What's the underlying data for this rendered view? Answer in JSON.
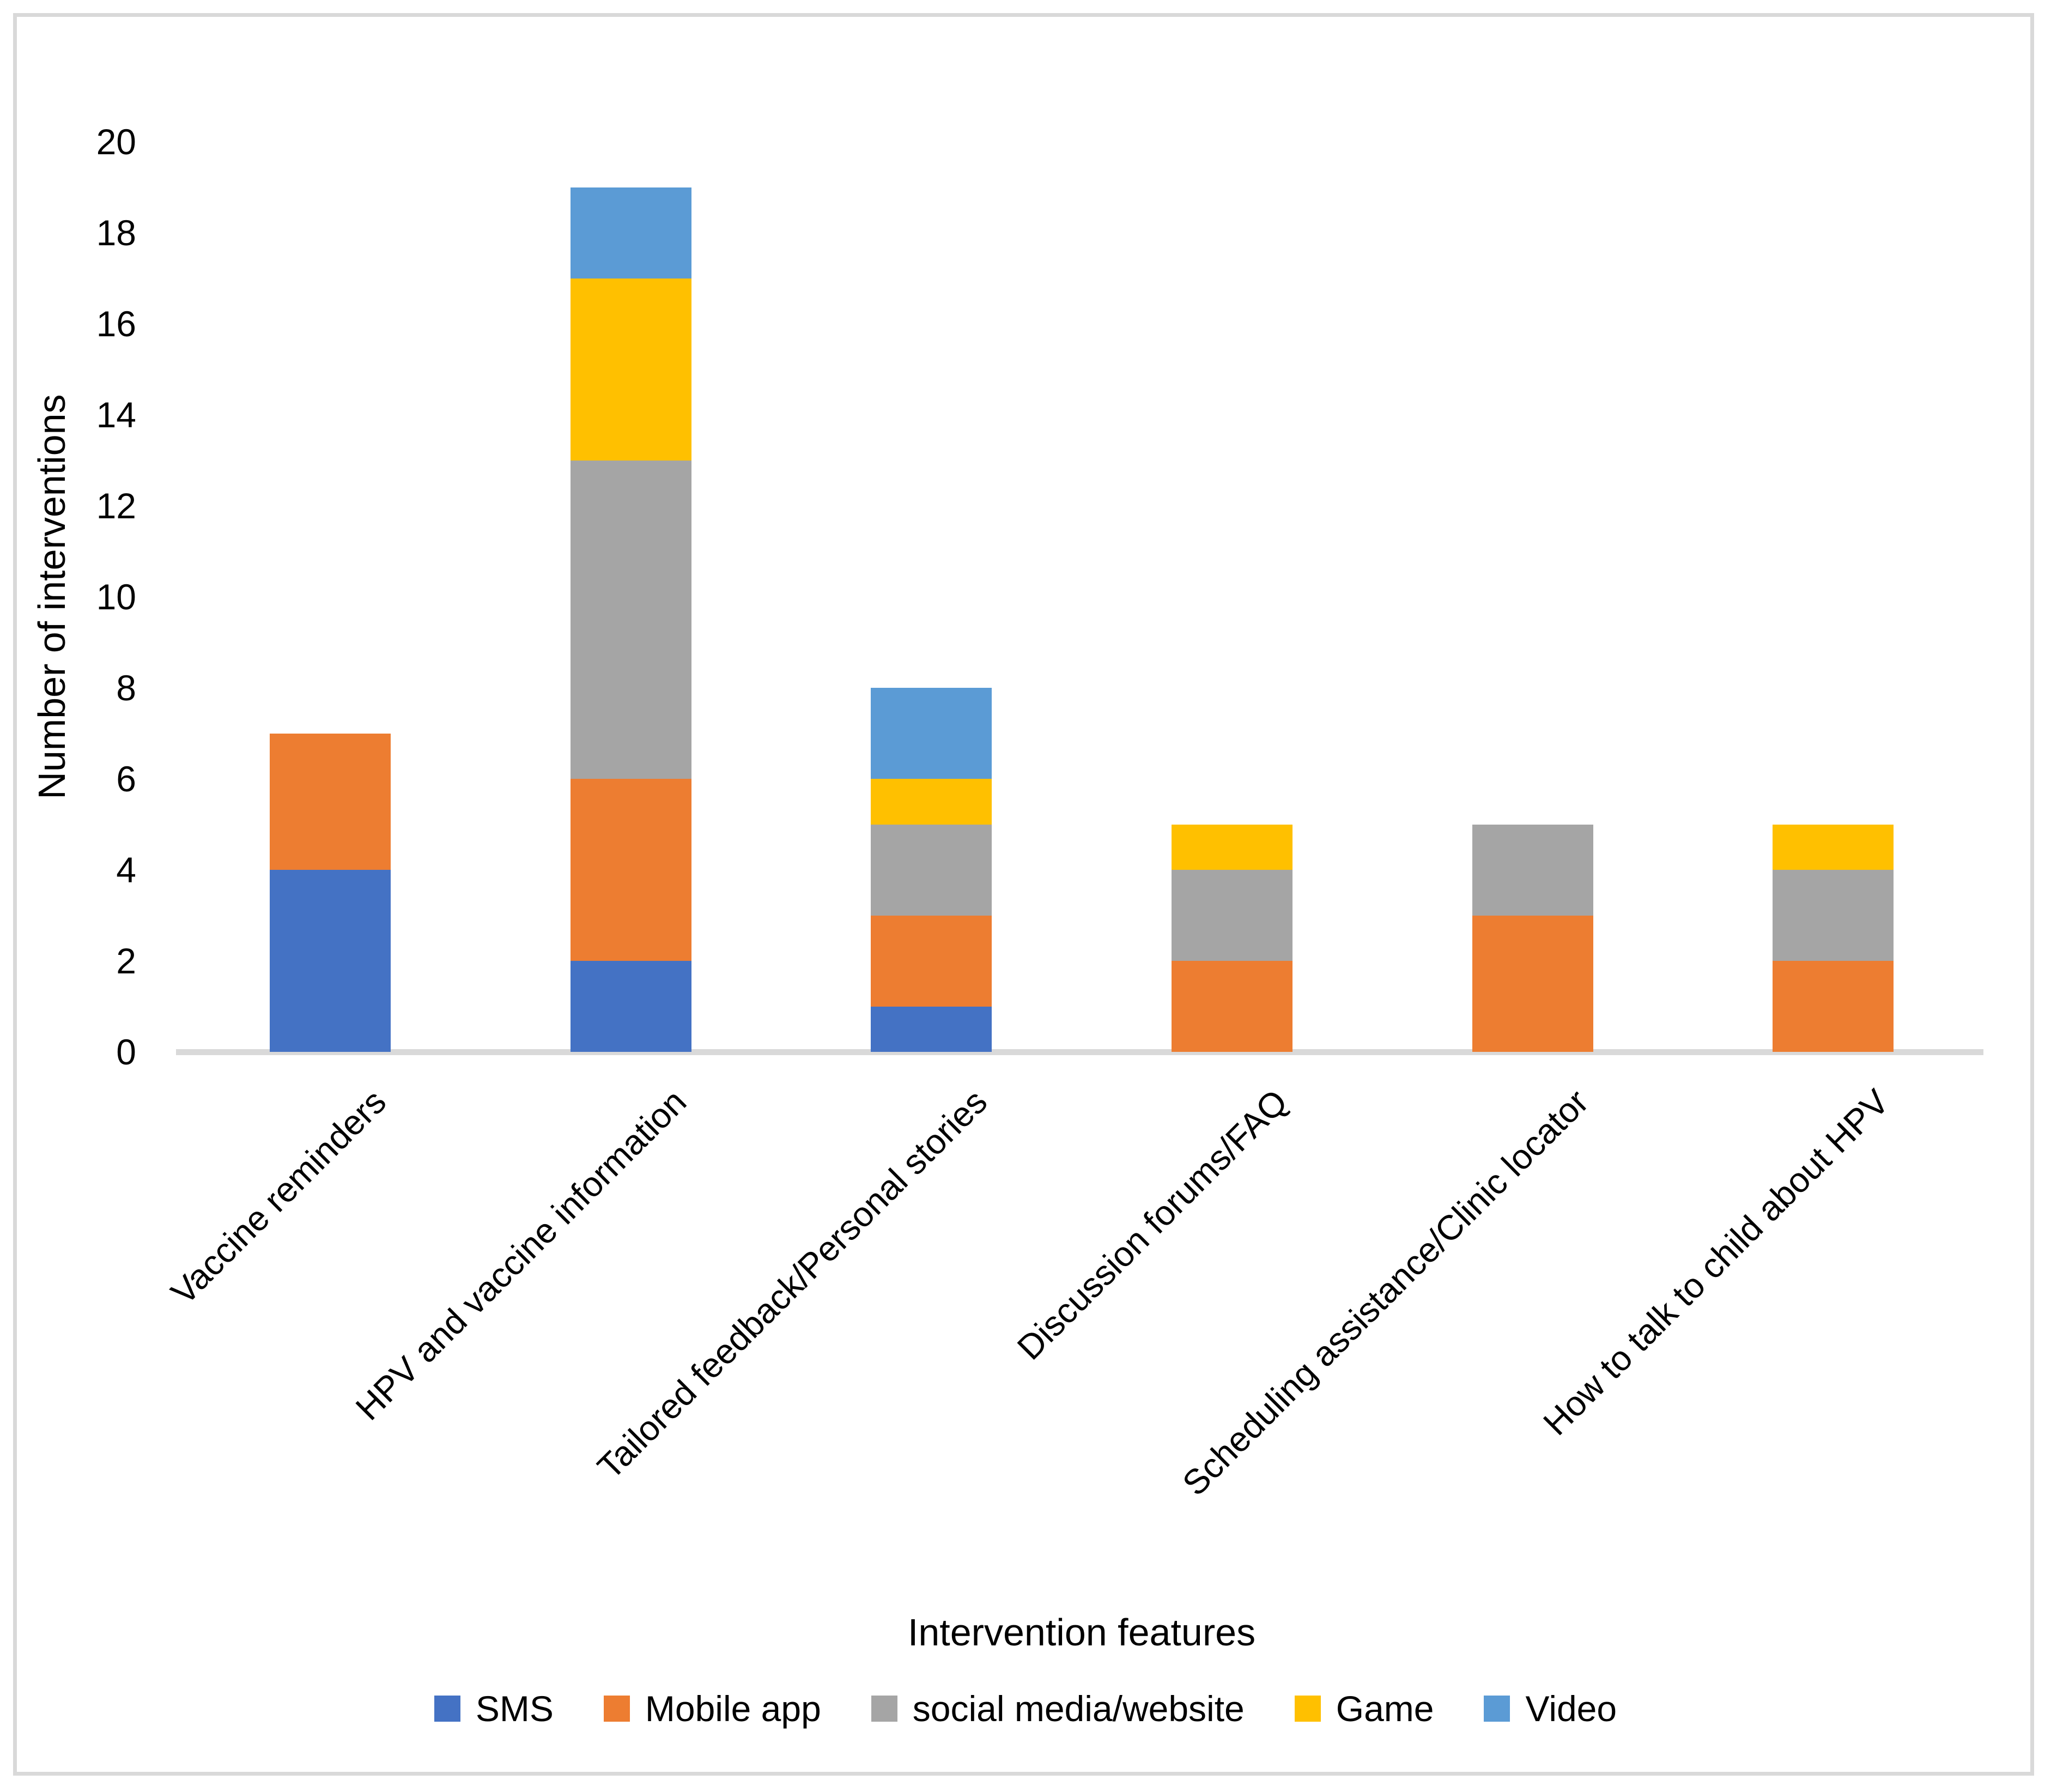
{
  "figure": {
    "background": "#ffffff",
    "border_color": "#d9d9d9"
  },
  "chart_data": {
    "type": "bar",
    "stacked": true,
    "title": "",
    "xlabel": "Intervention features",
    "ylabel": "Number of interventions",
    "categories": [
      "Vaccine reminders",
      "HPV and vaccine information",
      "Tailored feedback/Personal stories",
      "Discussion forums/FAQ",
      "Scheduling assistance/Clinic locator",
      "How to talk to child about HPV"
    ],
    "series": [
      {
        "name": "SMS",
        "color": "#4472C4",
        "values": [
          4,
          2,
          1,
          0,
          0,
          0
        ]
      },
      {
        "name": "Mobile app",
        "color": "#ED7D31",
        "values": [
          3,
          4,
          2,
          2,
          3,
          2
        ]
      },
      {
        "name": "social media/website",
        "color": "#A5A5A5",
        "values": [
          0,
          7,
          2,
          2,
          2,
          2
        ]
      },
      {
        "name": "Game",
        "color": "#FFC000",
        "values": [
          0,
          4,
          1,
          1,
          0,
          1
        ]
      },
      {
        "name": "Video",
        "color": "#5B9BD5",
        "values": [
          0,
          2,
          2,
          0,
          0,
          0
        ]
      }
    ],
    "totals": [
      7,
      19,
      8,
      5,
      5,
      5
    ],
    "ylim": [
      0,
      20
    ],
    "ytick_step": 2,
    "yticks": [
      0,
      2,
      4,
      6,
      8,
      10,
      12,
      14,
      16,
      18,
      20
    ],
    "grid": false,
    "axis_line_color": "#D9D9D9",
    "legend_position": "bottom",
    "legend_entries": [
      "SMS",
      "Mobile app",
      "social media/website",
      "Game",
      "Video"
    ]
  }
}
